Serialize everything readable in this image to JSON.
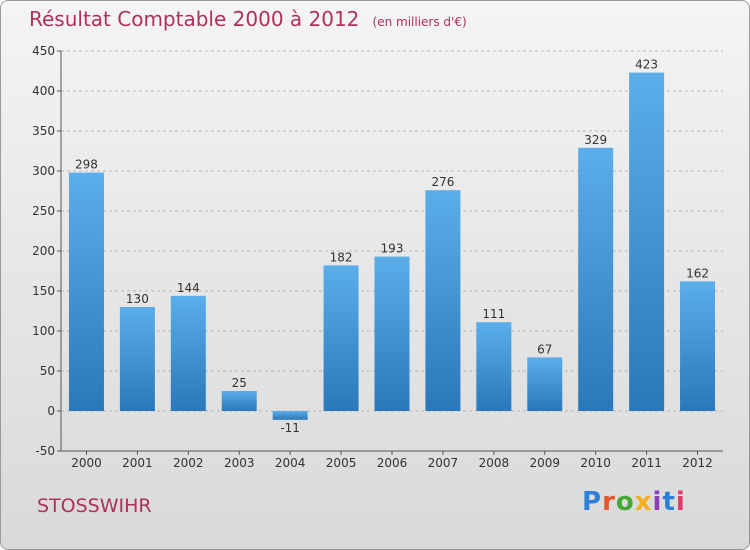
{
  "title": "Résultat Comptable 2000 à 2012",
  "unit": "(en milliers d'€)",
  "town": "STOSSWIHR",
  "logo": {
    "text": "Proxiti",
    "letters": [
      {
        "ch": "P",
        "color": "#2f7fd6"
      },
      {
        "ch": "r",
        "color": "#e3562e"
      },
      {
        "ch": "o",
        "color": "#46a832"
      },
      {
        "ch": "x",
        "color": "#f2b01e"
      },
      {
        "ch": "i",
        "color": "#8a3fb8"
      },
      {
        "ch": "t",
        "color": "#2f7fd6"
      },
      {
        "ch": "i",
        "color": "#e23a6a"
      }
    ]
  },
  "colors": {
    "bar_top": "#5aaeea",
    "bar_bottom": "#2a78ba",
    "title": "#b0305a"
  },
  "chart_data": {
    "type": "bar",
    "categories": [
      "2000",
      "2001",
      "2002",
      "2003",
      "2004",
      "2005",
      "2006",
      "2007",
      "2008",
      "2009",
      "2010",
      "2011",
      "2012"
    ],
    "values": [
      298,
      130,
      144,
      25,
      -11,
      182,
      193,
      276,
      111,
      67,
      329,
      423,
      162
    ],
    "value_labels": [
      "298",
      "130",
      "144",
      "25",
      "-11",
      "182",
      "193",
      "276",
      "111",
      "67",
      "329",
      "423",
      "162"
    ],
    "yticks": [
      -50,
      0,
      50,
      100,
      150,
      200,
      250,
      300,
      350,
      400,
      450
    ],
    "ylim": [
      -50,
      450
    ],
    "grid": "horizontal dashed"
  }
}
